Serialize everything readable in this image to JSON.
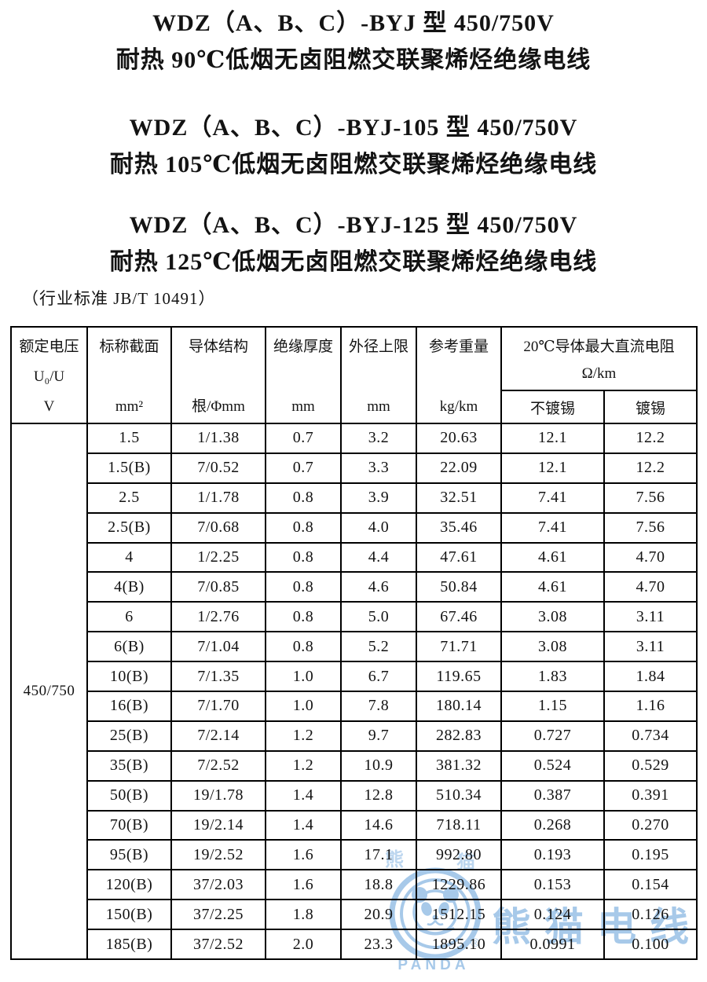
{
  "document": {
    "titles": [
      {
        "line1": "WDZ（A、B、C）-BYJ 型  450/750V",
        "line2": "耐热 90℃低烟无卤阻燃交联聚烯烃绝缘电线"
      },
      {
        "line1": "WDZ（A、B、C）-BYJ-105 型  450/750V",
        "line2": "耐热 105℃低烟无卤阻燃交联聚烯烃绝缘电线"
      },
      {
        "line1": "WDZ（A、B、C）-BYJ-125 型  450/750V",
        "line2": "耐热 125℃低烟无卤阻燃交联聚烯烃绝缘电线"
      }
    ],
    "standard_note": "（行业标准 JB/T 10491）"
  },
  "table": {
    "columns": [
      {
        "name": "额定电压",
        "mid": "U₀/U",
        "unit": "V"
      },
      {
        "name": "标称截面",
        "unit": "mm²"
      },
      {
        "name": "导体结构",
        "unit": "根/Φmm"
      },
      {
        "name": "绝缘厚度",
        "unit": "mm"
      },
      {
        "name": "外径上限",
        "unit": "mm"
      },
      {
        "name": "参考重量",
        "unit": "kg/km"
      }
    ],
    "resistance": {
      "title": "20℃导体最大直流电阻",
      "unit": "Ω/km",
      "sub": [
        "不镀锡",
        "镀锡"
      ]
    },
    "voltage": "450/750",
    "rows": [
      [
        "1.5",
        "1/1.38",
        "0.7",
        "3.2",
        "20.63",
        "12.1",
        "12.2"
      ],
      [
        "1.5(B)",
        "7/0.52",
        "0.7",
        "3.3",
        "22.09",
        "12.1",
        "12.2"
      ],
      [
        "2.5",
        "1/1.78",
        "0.8",
        "3.9",
        "32.51",
        "7.41",
        "7.56"
      ],
      [
        "2.5(B)",
        "7/0.68",
        "0.8",
        "4.0",
        "35.46",
        "7.41",
        "7.56"
      ],
      [
        "4",
        "1/2.25",
        "0.8",
        "4.4",
        "47.61",
        "4.61",
        "4.70"
      ],
      [
        "4(B)",
        "7/0.85",
        "0.8",
        "4.6",
        "50.84",
        "4.61",
        "4.70"
      ],
      [
        "6",
        "1/2.76",
        "0.8",
        "5.0",
        "67.46",
        "3.08",
        "3.11"
      ],
      [
        "6(B)",
        "7/1.04",
        "0.8",
        "5.2",
        "71.71",
        "3.08",
        "3.11"
      ],
      [
        "10(B)",
        "7/1.35",
        "1.0",
        "6.7",
        "119.65",
        "1.83",
        "1.84"
      ],
      [
        "16(B)",
        "7/1.70",
        "1.0",
        "7.8",
        "180.14",
        "1.15",
        "1.16"
      ],
      [
        "25(B)",
        "7/2.14",
        "1.2",
        "9.7",
        "282.83",
        "0.727",
        "0.734"
      ],
      [
        "35(B)",
        "7/2.52",
        "1.2",
        "10.9",
        "381.32",
        "0.524",
        "0.529"
      ],
      [
        "50(B)",
        "19/1.78",
        "1.4",
        "12.8",
        "510.34",
        "0.387",
        "0.391"
      ],
      [
        "70(B)",
        "19/2.14",
        "1.4",
        "14.6",
        "718.11",
        "0.268",
        "0.270"
      ],
      [
        "95(B)",
        "19/2.52",
        "1.6",
        "17.1",
        "992.80",
        "0.193",
        "0.195"
      ],
      [
        "120(B)",
        "37/2.03",
        "1.6",
        "18.8",
        "1229.86",
        "0.153",
        "0.154"
      ],
      [
        "150(B)",
        "37/2.25",
        "1.8",
        "20.9",
        "1512.15",
        "0.124",
        "0.126"
      ],
      [
        "185(B)",
        "37/2.52",
        "2.0",
        "23.3",
        "1895.10",
        "0.0991",
        "0.100"
      ]
    ]
  },
  "watermark": {
    "color": "#a7c9e9",
    "brand_cn": "熊猫电线",
    "brand_en": "PANDA",
    "reg_mark": "®",
    "ghost_chars": [
      "熊",
      "猫"
    ]
  }
}
